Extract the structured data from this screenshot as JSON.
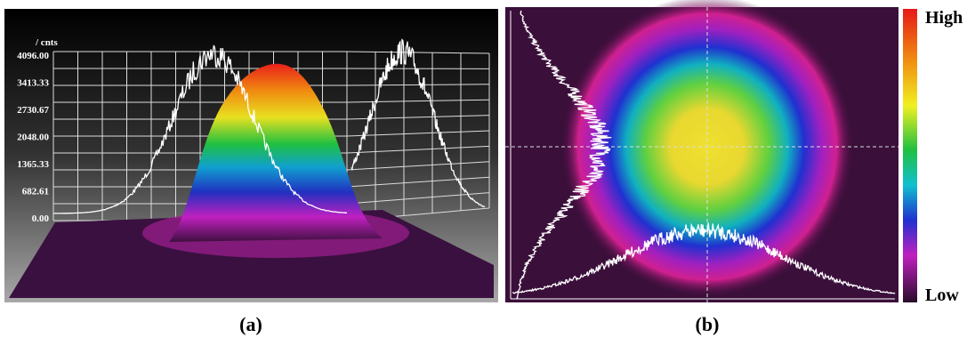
{
  "panel_a": {
    "unit_label": "/ cnts",
    "y_ticks": [
      "4096.00",
      "3413.33",
      "2730.67",
      "2048.00",
      "1365.33",
      "682.61",
      "0.00"
    ],
    "caption": "(a)"
  },
  "panel_b": {
    "colorbar": {
      "high": "High",
      "low": "Low"
    },
    "caption": "(b)"
  }
}
